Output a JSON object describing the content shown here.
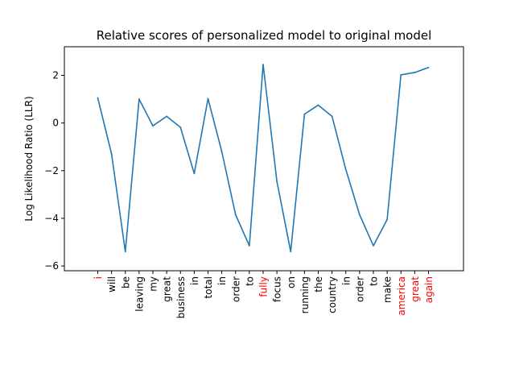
{
  "chart_data": {
    "type": "line",
    "title": "Relative scores of personalized model to original model",
    "xlabel": "",
    "ylabel": "Log Likelihood Ratio (LLR)",
    "ylim": [
      -6.2,
      3.2
    ],
    "yticks": [
      -6,
      -4,
      -2,
      0,
      2
    ],
    "grid": false,
    "categories": [
      "i",
      "will",
      "be",
      "leaving",
      "my",
      "great",
      "business",
      "in",
      "total",
      "in",
      "order",
      "to",
      "fully",
      "focus",
      "on",
      "running",
      "the",
      "country",
      "in",
      "order",
      "to",
      "make",
      "america",
      "great",
      "again"
    ],
    "highlight": [
      true,
      false,
      false,
      false,
      false,
      false,
      false,
      false,
      false,
      false,
      false,
      false,
      true,
      false,
      false,
      false,
      false,
      false,
      false,
      false,
      false,
      false,
      true,
      true,
      true
    ],
    "series": [
      {
        "values": [
          1.05,
          -1.3,
          -5.4,
          1.0,
          -0.12,
          0.28,
          -0.18,
          -2.12,
          1.02,
          -1.2,
          -3.85,
          -5.15,
          2.45,
          -2.45,
          -5.4,
          0.37,
          0.75,
          0.28,
          -1.95,
          -3.85,
          -5.15,
          -4.05,
          2.02,
          2.12,
          2.33
        ],
        "color": "#1f77b4"
      }
    ],
    "colors": {
      "line": "#1f77b4",
      "highlight": "#ff0000",
      "text": "#000000",
      "axes": "#000000"
    }
  }
}
